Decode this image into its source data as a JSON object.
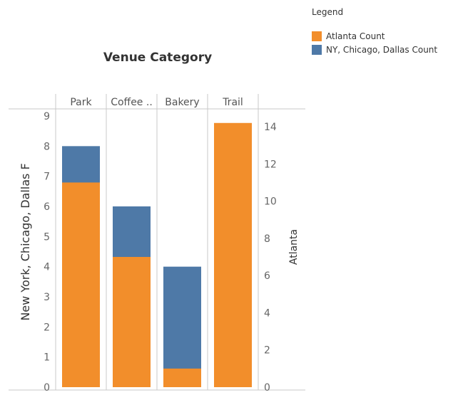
{
  "chart_data": {
    "type": "bar",
    "title": "Venue Category",
    "categories": [
      "Park",
      "Coffee ..",
      "Bakery",
      "Trail"
    ],
    "left_axis": {
      "label": "New York, Chicago, Dallas F",
      "ticks": [
        0,
        1,
        2,
        3,
        4,
        5,
        6,
        7,
        8,
        9
      ],
      "range": [
        0,
        9
      ]
    },
    "right_axis": {
      "label": "Atlanta",
      "ticks": [
        0,
        2,
        4,
        6,
        8,
        10,
        12,
        14
      ],
      "range": [
        0,
        15.45
      ]
    },
    "series": [
      {
        "name": "Atlanta Count",
        "axis": "right",
        "values": [
          11,
          7,
          1,
          14.2
        ]
      },
      {
        "name": "NY, Chicago, Dallas Count",
        "axis": "left",
        "values": [
          8,
          6,
          4,
          0
        ]
      }
    ],
    "colors": {
      "atlanta": "#f28e2b",
      "ny": "#4e79a7",
      "grid": "#d9d9d9",
      "divider": "#c8c8c8"
    },
    "grid": false,
    "legend": {
      "title": "Legend",
      "placement": "top-right"
    }
  }
}
